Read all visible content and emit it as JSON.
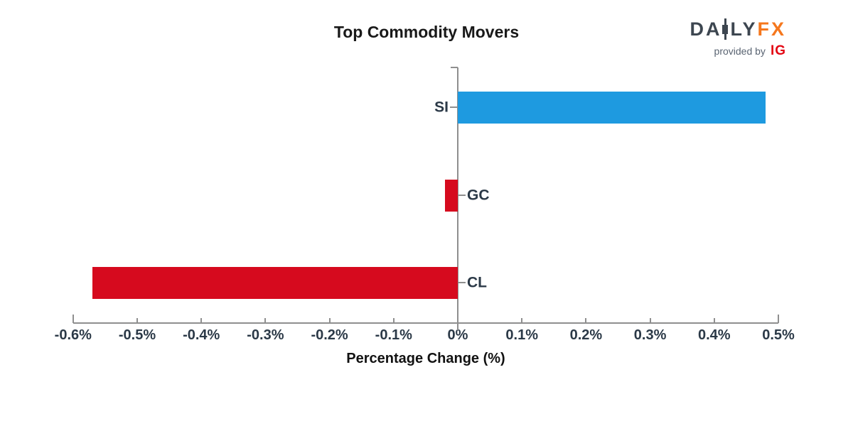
{
  "title": "Top Commodity Movers",
  "logo": {
    "daily_prefix": "DA",
    "daily_suffix": "LY",
    "fx": "FX",
    "provided_by": "provided by",
    "ig": "IG",
    "dark_color": "#3d4650",
    "orange_color": "#f5771d",
    "ig_red": "#e30613",
    "provided_color": "#5a6472"
  },
  "chart_data": {
    "type": "bar",
    "orientation": "horizontal",
    "title": "Top Commodity Movers",
    "xlabel": "Percentage Change (%)",
    "ylabel": "",
    "categories": [
      "SI",
      "GC",
      "CL"
    ],
    "values": [
      0.48,
      -0.02,
      -0.57
    ],
    "unit": "%",
    "xlim": [
      -0.65,
      0.52
    ],
    "x_ticks": [
      -0.6,
      -0.5,
      -0.4,
      -0.3,
      -0.2,
      -0.1,
      0,
      0.1,
      0.2,
      0.3,
      0.4,
      0.5
    ],
    "x_tick_labels": [
      "-0.6%",
      "-0.5%",
      "-0.4%",
      "-0.3%",
      "-0.2%",
      "-0.1%",
      "0%",
      "0.1%",
      "0.2%",
      "0.3%",
      "0.4%",
      "0.5%"
    ],
    "bar_colors": [
      "#1e9ae0",
      "#d60a1e",
      "#d60a1e"
    ],
    "positive_color": "#1e9ae0",
    "negative_color": "#d60a1e",
    "axis_color": "#8f8f8f",
    "label_color": "#2b3947",
    "grid": false,
    "legend": false
  }
}
